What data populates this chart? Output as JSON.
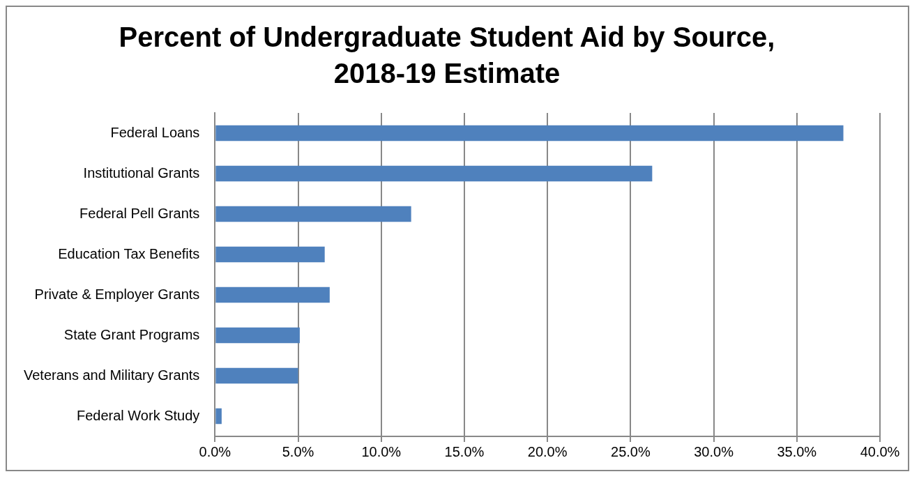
{
  "chart_data": {
    "type": "bar",
    "orientation": "horizontal",
    "title": [
      "Percent of Undergraduate Student Aid by Source,",
      "2018-19 Estimate"
    ],
    "categories": [
      "Federal Loans",
      "Institutional Grants",
      "Federal Pell Grants",
      "Education Tax Benefits",
      "Private & Employer Grants",
      "State Grant Programs",
      "Veterans and Military Grants",
      "Federal Work Study"
    ],
    "values": [
      37.8,
      26.3,
      11.8,
      6.6,
      6.9,
      5.1,
      5.0,
      0.4
    ],
    "color": "#4f81bd",
    "xlim": [
      0,
      40
    ],
    "xticks": [
      {
        "value": 0,
        "label": "0.0%"
      },
      {
        "value": 5,
        "label": "5.0%"
      },
      {
        "value": 10,
        "label": "10.0%"
      },
      {
        "value": 15,
        "label": "15.0%"
      },
      {
        "value": 20,
        "label": "20.0%"
      },
      {
        "value": 25,
        "label": "25.0%"
      },
      {
        "value": 30,
        "label": "30.0%"
      },
      {
        "value": 35,
        "label": "35.0%"
      },
      {
        "value": 40,
        "label": "40.0%"
      }
    ],
    "grid": "x",
    "legend": false
  }
}
